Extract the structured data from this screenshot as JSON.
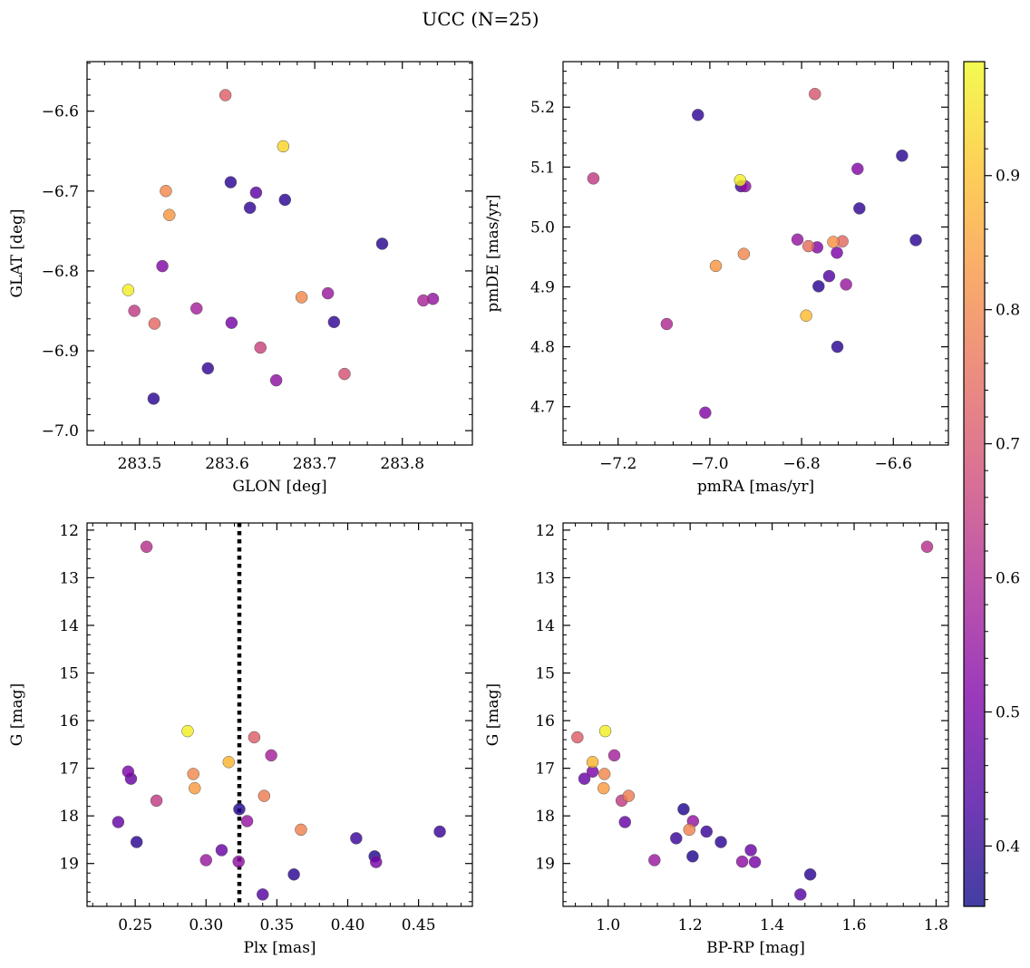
{
  "suptitle": "UCC (N=25)",
  "colorbar": {
    "range": [
      0.355,
      0.985
    ],
    "ticks": [
      0.4,
      0.5,
      0.6,
      0.7,
      0.8,
      0.9
    ],
    "tick_labels": [
      "0.4",
      "0.5",
      "0.6",
      "0.7",
      "0.8",
      "0.9"
    ],
    "colormap": "plasma"
  },
  "chart_data": [
    {
      "type": "scatter",
      "xlabel": "GLON [deg]",
      "ylabel": "GLAT [deg]",
      "xlim": [
        283.44,
        283.88
      ],
      "ylim": [
        -7.018,
        -6.538
      ],
      "yinvert": false,
      "xticks": [
        283.5,
        283.6,
        283.7,
        283.8
      ],
      "xtick_labels": [
        "283.5",
        "283.6",
        "283.7",
        "283.8"
      ],
      "yticks": [
        -7.0,
        -6.9,
        -6.8,
        -6.7,
        -6.6
      ],
      "ytick_labels": [
        "−7.0",
        "−6.9",
        "−6.8",
        "−6.7",
        "−6.6"
      ],
      "points": [
        {
          "x": 283.598,
          "y": -6.58,
          "c": 0.72
        },
        {
          "x": 283.664,
          "y": -6.644,
          "c": 0.93
        },
        {
          "x": 283.53,
          "y": -6.7,
          "c": 0.8
        },
        {
          "x": 283.604,
          "y": -6.689,
          "c": 0.39
        },
        {
          "x": 283.633,
          "y": -6.702,
          "c": 0.46
        },
        {
          "x": 283.626,
          "y": -6.721,
          "c": 0.4
        },
        {
          "x": 283.666,
          "y": -6.711,
          "c": 0.39
        },
        {
          "x": 283.534,
          "y": -6.73,
          "c": 0.83
        },
        {
          "x": 283.777,
          "y": -6.766,
          "c": 0.39
        },
        {
          "x": 283.526,
          "y": -6.794,
          "c": 0.52
        },
        {
          "x": 283.487,
          "y": -6.824,
          "c": 0.97
        },
        {
          "x": 283.494,
          "y": -6.85,
          "c": 0.64
        },
        {
          "x": 283.517,
          "y": -6.866,
          "c": 0.74
        },
        {
          "x": 283.565,
          "y": -6.847,
          "c": 0.58
        },
        {
          "x": 283.605,
          "y": -6.865,
          "c": 0.5
        },
        {
          "x": 283.685,
          "y": -6.833,
          "c": 0.8
        },
        {
          "x": 283.715,
          "y": -6.828,
          "c": 0.56
        },
        {
          "x": 283.722,
          "y": -6.864,
          "c": 0.4
        },
        {
          "x": 283.824,
          "y": -6.837,
          "c": 0.59
        },
        {
          "x": 283.835,
          "y": -6.835,
          "c": 0.55
        },
        {
          "x": 283.578,
          "y": -6.922,
          "c": 0.4
        },
        {
          "x": 283.638,
          "y": -6.896,
          "c": 0.66
        },
        {
          "x": 283.656,
          "y": -6.937,
          "c": 0.54
        },
        {
          "x": 283.734,
          "y": -6.929,
          "c": 0.69
        },
        {
          "x": 283.516,
          "y": -6.96,
          "c": 0.39
        }
      ]
    },
    {
      "type": "scatter",
      "xlabel": "pmRA [mas/yr]",
      "ylabel": "pmDE [mas/yr]",
      "xlim": [
        -7.32,
        -6.48
      ],
      "ylim": [
        4.636,
        5.276
      ],
      "yinvert": false,
      "xticks": [
        -7.2,
        -7.0,
        -6.8,
        -6.6
      ],
      "xtick_labels": [
        "−7.2",
        "−7.0",
        "−6.8",
        "−6.6"
      ],
      "yticks": [
        4.7,
        4.8,
        4.9,
        5.0,
        5.1,
        5.2
      ],
      "ytick_labels": [
        "4.7",
        "4.8",
        "4.9",
        "5.0",
        "5.1",
        "5.2"
      ],
      "points": [
        {
          "x": -6.771,
          "y": 5.222,
          "c": 0.7
        },
        {
          "x": -7.026,
          "y": 5.187,
          "c": 0.4
        },
        {
          "x": -7.254,
          "y": 5.081,
          "c": 0.64
        },
        {
          "x": -6.581,
          "y": 5.119,
          "c": 0.39
        },
        {
          "x": -6.678,
          "y": 5.097,
          "c": 0.52
        },
        {
          "x": -6.934,
          "y": 5.078,
          "c": 0.97
        },
        {
          "x": -6.932,
          "y": 5.068,
          "c": 0.42
        },
        {
          "x": -6.923,
          "y": 5.068,
          "c": 0.54
        },
        {
          "x": -6.674,
          "y": 5.031,
          "c": 0.4
        },
        {
          "x": -6.551,
          "y": 4.978,
          "c": 0.39
        },
        {
          "x": -6.809,
          "y": 4.979,
          "c": 0.55
        },
        {
          "x": -6.785,
          "y": 4.968,
          "c": 0.75
        },
        {
          "x": -6.766,
          "y": 4.966,
          "c": 0.52
        },
        {
          "x": -6.731,
          "y": 4.975,
          "c": 0.82
        },
        {
          "x": -6.711,
          "y": 4.976,
          "c": 0.74
        },
        {
          "x": -6.723,
          "y": 4.957,
          "c": 0.51
        },
        {
          "x": -6.926,
          "y": 4.955,
          "c": 0.8
        },
        {
          "x": -6.987,
          "y": 4.935,
          "c": 0.83
        },
        {
          "x": -6.74,
          "y": 4.918,
          "c": 0.45
        },
        {
          "x": -6.763,
          "y": 4.901,
          "c": 0.39
        },
        {
          "x": -6.703,
          "y": 4.904,
          "c": 0.56
        },
        {
          "x": -6.79,
          "y": 4.852,
          "c": 0.89
        },
        {
          "x": -7.094,
          "y": 4.838,
          "c": 0.6
        },
        {
          "x": -6.722,
          "y": 4.8,
          "c": 0.39
        },
        {
          "x": -7.01,
          "y": 4.69,
          "c": 0.52
        }
      ]
    },
    {
      "type": "scatter",
      "xlabel": "Plx [mas]",
      "ylabel": "G [mag]",
      "xlim": [
        0.216,
        0.488
      ],
      "ylim": [
        19.9,
        11.85
      ],
      "yinvert": true,
      "xticks": [
        0.25,
        0.3,
        0.35,
        0.4,
        0.45
      ],
      "xtick_labels": [
        "0.25",
        "0.30",
        "0.35",
        "0.40",
        "0.45"
      ],
      "yticks": [
        12,
        13,
        14,
        15,
        16,
        17,
        18,
        19
      ],
      "ytick_labels": [
        "12",
        "13",
        "14",
        "15",
        "16",
        "17",
        "18",
        "19"
      ],
      "vline": 0.3235,
      "points": [
        {
          "x": 0.258,
          "y": 12.35,
          "c": 0.62
        },
        {
          "x": 0.287,
          "y": 16.22,
          "c": 0.97
        },
        {
          "x": 0.334,
          "y": 16.35,
          "c": 0.72
        },
        {
          "x": 0.346,
          "y": 16.73,
          "c": 0.58
        },
        {
          "x": 0.316,
          "y": 16.87,
          "c": 0.88
        },
        {
          "x": 0.245,
          "y": 17.07,
          "c": 0.51
        },
        {
          "x": 0.291,
          "y": 17.12,
          "c": 0.8
        },
        {
          "x": 0.247,
          "y": 17.22,
          "c": 0.48
        },
        {
          "x": 0.292,
          "y": 17.42,
          "c": 0.84
        },
        {
          "x": 0.341,
          "y": 17.58,
          "c": 0.78
        },
        {
          "x": 0.265,
          "y": 17.68,
          "c": 0.64
        },
        {
          "x": 0.3235,
          "y": 17.86,
          "c": 0.38
        },
        {
          "x": 0.238,
          "y": 18.13,
          "c": 0.47
        },
        {
          "x": 0.329,
          "y": 18.11,
          "c": 0.55
        },
        {
          "x": 0.367,
          "y": 18.29,
          "c": 0.79
        },
        {
          "x": 0.465,
          "y": 18.33,
          "c": 0.41
        },
        {
          "x": 0.406,
          "y": 18.47,
          "c": 0.41
        },
        {
          "x": 0.251,
          "y": 18.55,
          "c": 0.39
        },
        {
          "x": 0.311,
          "y": 18.72,
          "c": 0.48
        },
        {
          "x": 0.419,
          "y": 18.85,
          "c": 0.38
        },
        {
          "x": 0.3,
          "y": 18.93,
          "c": 0.56
        },
        {
          "x": 0.323,
          "y": 18.96,
          "c": 0.54
        },
        {
          "x": 0.42,
          "y": 18.97,
          "c": 0.5
        },
        {
          "x": 0.362,
          "y": 19.23,
          "c": 0.39
        },
        {
          "x": 0.34,
          "y": 19.65,
          "c": 0.45
        }
      ]
    },
    {
      "type": "scatter",
      "xlabel": "BP-RP [mag]",
      "ylabel": "G [mag]",
      "xlim": [
        0.89,
        1.83
      ],
      "ylim": [
        19.9,
        11.85
      ],
      "yinvert": true,
      "xticks": [
        1.0,
        1.2,
        1.4,
        1.6,
        1.8
      ],
      "xtick_labels": [
        "1.0",
        "1.2",
        "1.4",
        "1.6",
        "1.8"
      ],
      "yticks": [
        12,
        13,
        14,
        15,
        16,
        17,
        18,
        19
      ],
      "ytick_labels": [
        "12",
        "13",
        "14",
        "15",
        "16",
        "17",
        "18",
        "19"
      ],
      "points": [
        {
          "x": 1.778,
          "y": 12.35,
          "c": 0.62
        },
        {
          "x": 0.993,
          "y": 16.22,
          "c": 0.97
        },
        {
          "x": 0.925,
          "y": 16.35,
          "c": 0.72
        },
        {
          "x": 1.015,
          "y": 16.73,
          "c": 0.58
        },
        {
          "x": 0.962,
          "y": 16.87,
          "c": 0.88
        },
        {
          "x": 0.962,
          "y": 17.07,
          "c": 0.51
        },
        {
          "x": 0.991,
          "y": 17.12,
          "c": 0.8
        },
        {
          "x": 0.942,
          "y": 17.22,
          "c": 0.48
        },
        {
          "x": 0.989,
          "y": 17.42,
          "c": 0.84
        },
        {
          "x": 1.05,
          "y": 17.58,
          "c": 0.78
        },
        {
          "x": 1.033,
          "y": 17.68,
          "c": 0.64
        },
        {
          "x": 1.184,
          "y": 17.86,
          "c": 0.38
        },
        {
          "x": 1.041,
          "y": 18.13,
          "c": 0.47
        },
        {
          "x": 1.207,
          "y": 18.11,
          "c": 0.55
        },
        {
          "x": 1.198,
          "y": 18.29,
          "c": 0.79
        },
        {
          "x": 1.24,
          "y": 18.33,
          "c": 0.41
        },
        {
          "x": 1.166,
          "y": 18.47,
          "c": 0.41
        },
        {
          "x": 1.275,
          "y": 18.55,
          "c": 0.39
        },
        {
          "x": 1.348,
          "y": 18.72,
          "c": 0.48
        },
        {
          "x": 1.206,
          "y": 18.85,
          "c": 0.38
        },
        {
          "x": 1.113,
          "y": 18.93,
          "c": 0.56
        },
        {
          "x": 1.327,
          "y": 18.96,
          "c": 0.54
        },
        {
          "x": 1.358,
          "y": 18.97,
          "c": 0.5
        },
        {
          "x": 1.493,
          "y": 19.23,
          "c": 0.39
        },
        {
          "x": 1.469,
          "y": 19.65,
          "c": 0.45
        }
      ]
    }
  ]
}
